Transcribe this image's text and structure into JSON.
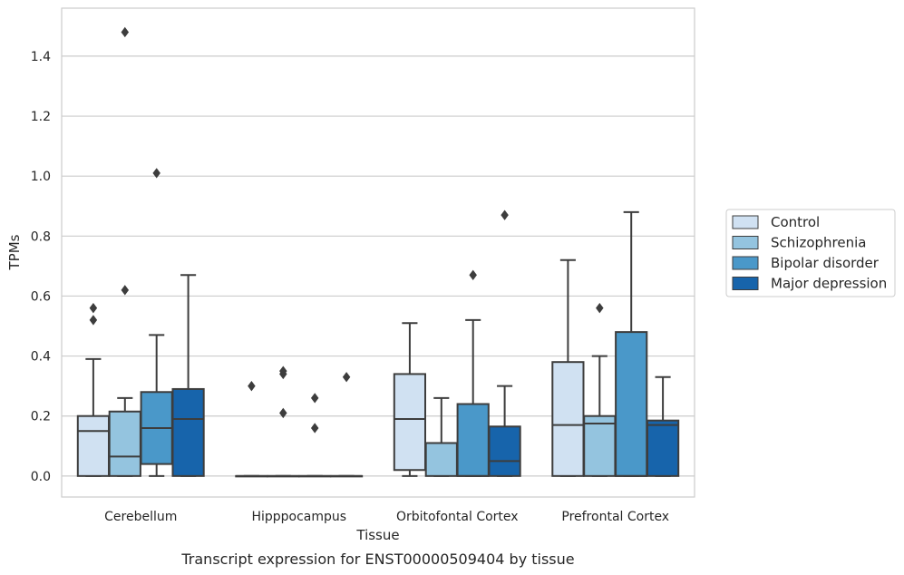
{
  "chart_data": {
    "type": "box",
    "xlabel": "Tissue",
    "ylabel": "TPMs",
    "caption": "Transcript expression for ENST00000509404 by tissue",
    "ylim": [
      -0.07,
      1.56
    ],
    "yticks": [
      "0.0",
      "0.2",
      "0.4",
      "0.6",
      "0.8",
      "1.0",
      "1.2",
      "1.4"
    ],
    "grid": true,
    "legend_position": "right",
    "categories": [
      "Cerebellum",
      "Hipppocampus",
      "Orbitofontal Cortex",
      "Prefrontal Cortex"
    ],
    "series": [
      {
        "name": "Control",
        "color": "#d0e1f2",
        "boxes": [
          {
            "q1": 0.0,
            "median": 0.15,
            "q3": 0.2,
            "whisker_low": 0.0,
            "whisker_high": 0.39,
            "outliers": [
              0.52,
              0.56
            ]
          },
          {
            "q1": 0.0,
            "median": 0.0,
            "q3": 0.0,
            "whisker_low": 0.0,
            "whisker_high": 0.0,
            "outliers": [
              0.3
            ]
          },
          {
            "q1": 0.02,
            "median": 0.19,
            "q3": 0.34,
            "whisker_low": 0.0,
            "whisker_high": 0.51,
            "outliers": []
          },
          {
            "q1": 0.0,
            "median": 0.17,
            "q3": 0.38,
            "whisker_low": 0.0,
            "whisker_high": 0.72,
            "outliers": []
          }
        ]
      },
      {
        "name": "Schizophrenia",
        "color": "#94c4df",
        "boxes": [
          {
            "q1": 0.0,
            "median": 0.065,
            "q3": 0.215,
            "whisker_low": 0.0,
            "whisker_high": 0.26,
            "outliers": [
              0.62,
              1.48
            ]
          },
          {
            "q1": 0.0,
            "median": 0.0,
            "q3": 0.0,
            "whisker_low": 0.0,
            "whisker_high": 0.0,
            "outliers": [
              0.21,
              0.34,
              0.35
            ]
          },
          {
            "q1": 0.0,
            "median": 0.11,
            "q3": 0.11,
            "whisker_low": 0.0,
            "whisker_high": 0.26,
            "outliers": []
          },
          {
            "q1": 0.0,
            "median": 0.175,
            "q3": 0.2,
            "whisker_low": 0.0,
            "whisker_high": 0.4,
            "outliers": [
              0.56
            ]
          }
        ]
      },
      {
        "name": "Bipolar disorder",
        "color": "#4a98c9",
        "boxes": [
          {
            "q1": 0.04,
            "median": 0.16,
            "q3": 0.28,
            "whisker_low": 0.0,
            "whisker_high": 0.47,
            "outliers": [
              1.01
            ]
          },
          {
            "q1": 0.0,
            "median": 0.0,
            "q3": 0.0,
            "whisker_low": 0.0,
            "whisker_high": 0.0,
            "outliers": [
              0.16,
              0.26
            ]
          },
          {
            "q1": 0.0,
            "median": 0.0,
            "q3": 0.24,
            "whisker_low": 0.0,
            "whisker_high": 0.52,
            "outliers": [
              0.67
            ]
          },
          {
            "q1": 0.0,
            "median": 0.0,
            "q3": 0.48,
            "whisker_low": 0.0,
            "whisker_high": 0.88,
            "outliers": []
          }
        ]
      },
      {
        "name": "Major depression",
        "color": "#1764ab",
        "boxes": [
          {
            "q1": 0.0,
            "median": 0.19,
            "q3": 0.29,
            "whisker_low": 0.0,
            "whisker_high": 0.67,
            "outliers": []
          },
          {
            "q1": 0.0,
            "median": 0.0,
            "q3": 0.0,
            "whisker_low": 0.0,
            "whisker_high": 0.0,
            "outliers": [
              0.33
            ]
          },
          {
            "q1": 0.0,
            "median": 0.05,
            "q3": 0.165,
            "whisker_low": 0.0,
            "whisker_high": 0.3,
            "outliers": [
              0.87
            ]
          },
          {
            "q1": 0.0,
            "median": 0.17,
            "q3": 0.185,
            "whisker_low": 0.0,
            "whisker_high": 0.33,
            "outliers": []
          }
        ]
      }
    ]
  }
}
